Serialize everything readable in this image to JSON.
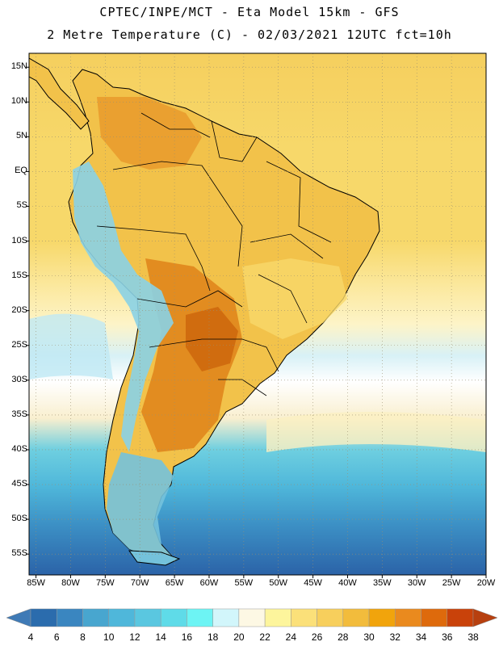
{
  "header": {
    "title_line1": "CPTEC/INPE/MCT -  Eta Model 15km - GFS",
    "title_line2": "2 Metre Temperature (C) - 02/03/2021 12UTC fct=10h"
  },
  "map": {
    "lon_range": [
      -86,
      -20
    ],
    "lat_range": [
      -58,
      17
    ],
    "lat_ticks": [
      {
        "value": 15,
        "label": "15N"
      },
      {
        "value": 10,
        "label": "10N"
      },
      {
        "value": 5,
        "label": "5N"
      },
      {
        "value": 0,
        "label": "EQ"
      },
      {
        "value": -5,
        "label": "5S"
      },
      {
        "value": -10,
        "label": "10S"
      },
      {
        "value": -15,
        "label": "15S"
      },
      {
        "value": -20,
        "label": "20S"
      },
      {
        "value": -25,
        "label": "25S"
      },
      {
        "value": -30,
        "label": "30S"
      },
      {
        "value": -35,
        "label": "35S"
      },
      {
        "value": -40,
        "label": "40S"
      },
      {
        "value": -45,
        "label": "45S"
      },
      {
        "value": -50,
        "label": "50S"
      },
      {
        "value": -55,
        "label": "55S"
      }
    ],
    "lon_ticks": [
      {
        "value": -85,
        "label": "85W"
      },
      {
        "value": -80,
        "label": "80W"
      },
      {
        "value": -75,
        "label": "75W"
      },
      {
        "value": -70,
        "label": "70W"
      },
      {
        "value": -65,
        "label": "65W"
      },
      {
        "value": -60,
        "label": "60W"
      },
      {
        "value": -55,
        "label": "55W"
      },
      {
        "value": -50,
        "label": "50W"
      },
      {
        "value": -45,
        "label": "45W"
      },
      {
        "value": -40,
        "label": "40W"
      },
      {
        "value": -35,
        "label": "35W"
      },
      {
        "value": -30,
        "label": "30W"
      },
      {
        "value": -25,
        "label": "25W"
      },
      {
        "value": -20,
        "label": "20W"
      }
    ]
  },
  "colorbar": {
    "labels": [
      "4",
      "6",
      "8",
      "10",
      "12",
      "14",
      "16",
      "18",
      "20",
      "22",
      "24",
      "26",
      "28",
      "30",
      "32",
      "34",
      "36",
      "38"
    ],
    "colors": [
      "#2b6cad",
      "#3a86c0",
      "#48a6cf",
      "#4fb7da",
      "#5ac7e0",
      "#5fdbe8",
      "#6df4f4",
      "#d2f6fb",
      "#fdf8e4",
      "#fdf59c",
      "#fbe079",
      "#f7cf5c",
      "#f2bc3c",
      "#f1a40c",
      "#ea8a1e",
      "#de6a0c",
      "#c9420a"
    ],
    "low_color": "#3f7ab6",
    "high_color": "#b7400f"
  },
  "land_zones": [
    {
      "name": "andes-north",
      "color": "#8ad2e6"
    },
    {
      "name": "amazon",
      "color": "#f2c24a"
    },
    {
      "name": "chaco",
      "color": "#e0861c"
    },
    {
      "name": "patagonia",
      "color": "#74c2db"
    }
  ]
}
